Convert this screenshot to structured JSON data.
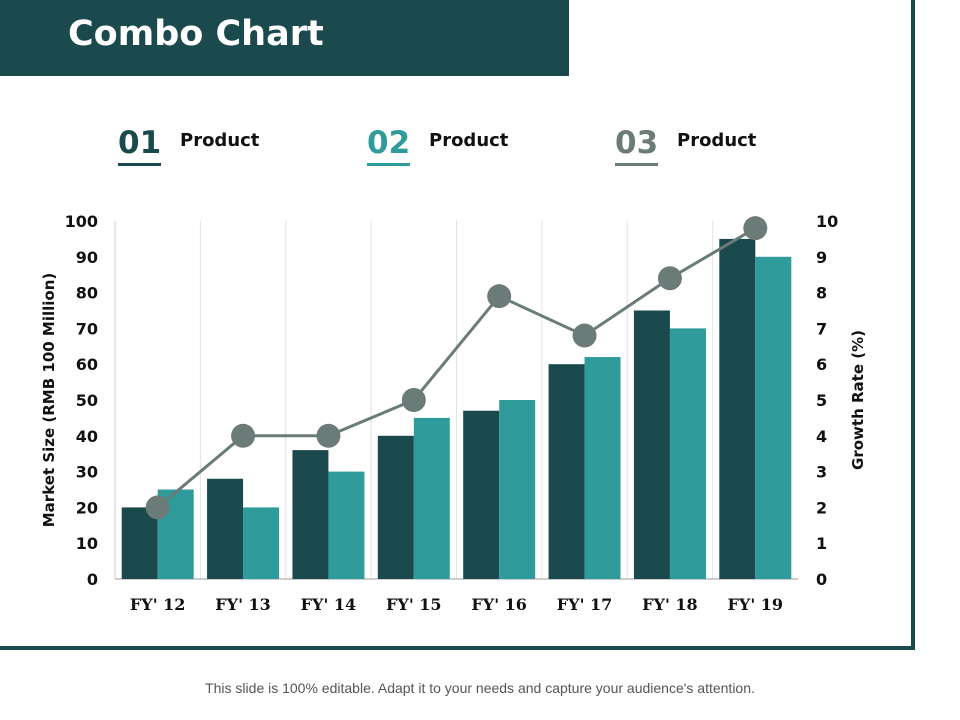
{
  "title": "Combo Chart",
  "legend": [
    {
      "num": "01",
      "label": "Product",
      "color": "#1a4a4e"
    },
    {
      "num": "02",
      "label": "Product",
      "color": "#2f9b9b"
    },
    {
      "num": "03",
      "label": "Product",
      "color": "#6b7b78"
    }
  ],
  "footer": "This slide is 100% editable. Adapt it to your needs and capture your audience's attention.",
  "chart_data": {
    "type": "bar",
    "categories": [
      "FY' 12",
      "FY' 13",
      "FY' 14",
      "FY' 15",
      "FY' 16",
      "FY' 17",
      "FY' 18",
      "FY' 19"
    ],
    "series": [
      {
        "values": [
          20,
          28,
          36,
          40,
          47,
          60,
          75,
          95
        ],
        "color": "#1a4a4e",
        "kind": "bar",
        "axis": "left"
      },
      {
        "values": [
          25,
          20,
          30,
          45,
          50,
          62,
          70,
          90
        ],
        "color": "#2f9b9b",
        "kind": "bar",
        "axis": "left"
      },
      {
        "values": [
          2,
          4,
          4,
          5,
          7.9,
          6.8,
          8.4,
          9.8
        ],
        "color": "#6b7b78",
        "kind": "line",
        "axis": "right"
      }
    ],
    "ylabel": "Market Size (RMB 100 Million)",
    "y2label": "Growth Rate (%)",
    "ylim": [
      0,
      100
    ],
    "y2lim": [
      0,
      10
    ],
    "yticks": [
      "0",
      "10",
      "20",
      "30",
      "40",
      "50",
      "60",
      "70",
      "80",
      "90",
      "100"
    ],
    "y2ticks": [
      "0",
      "1",
      "2",
      "3",
      "4",
      "5",
      "6",
      "7",
      "8",
      "9",
      "10"
    ],
    "grid": "vertical"
  }
}
